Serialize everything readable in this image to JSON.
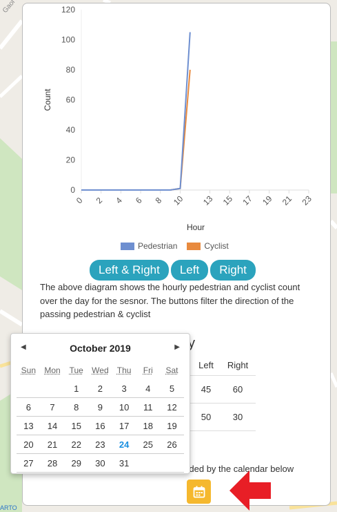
{
  "map": {
    "street_label": "Gaol Ros",
    "attribution": "ARTO",
    "colors": {
      "land": "#efece6",
      "park": "#cfe6c0",
      "road": "#ffffff",
      "major_road": "#f9e29a"
    }
  },
  "chart_data": {
    "type": "line",
    "xlabel": "Hour",
    "ylabel": "Count",
    "x_ticks": [
      0,
      2,
      4,
      6,
      8,
      10,
      13,
      15,
      17,
      19,
      21,
      23
    ],
    "ylim": [
      0,
      120
    ],
    "y_ticks": [
      0,
      20,
      40,
      60,
      80,
      100,
      120
    ],
    "series": [
      {
        "name": "Pedestrian",
        "color": "#6e8fd0",
        "points": [
          [
            0,
            0
          ],
          [
            1,
            0
          ],
          [
            2,
            0
          ],
          [
            3,
            0
          ],
          [
            4,
            0
          ],
          [
            5,
            0
          ],
          [
            6,
            0
          ],
          [
            7,
            0
          ],
          [
            8,
            0
          ],
          [
            9,
            0
          ],
          [
            10,
            1
          ],
          [
            11,
            105
          ]
        ]
      },
      {
        "name": "Cyclist",
        "color": "#e88a3e",
        "points": [
          [
            0,
            0
          ],
          [
            1,
            0
          ],
          [
            2,
            0
          ],
          [
            3,
            0
          ],
          [
            4,
            0
          ],
          [
            5,
            0
          ],
          [
            6,
            0
          ],
          [
            7,
            0
          ],
          [
            8,
            0
          ],
          [
            9,
            0
          ],
          [
            10,
            1
          ],
          [
            11,
            80
          ]
        ]
      }
    ]
  },
  "legend": {
    "pedestrian": "Pedestrian",
    "cyclist": "Cyclist"
  },
  "buttons": {
    "both": "Left & Right",
    "left": "Left",
    "right": "Right"
  },
  "description": "The above diagram shows the hourly pedestrian and cyclist count over the day for the sesnor. The buttons filter the direction of the passing pedestrian & cyclist",
  "section_title_fragment": "y",
  "table": {
    "headers": [
      "Left",
      "Right"
    ],
    "rows": [
      [
        "45",
        "60"
      ],
      [
        "50",
        "30"
      ]
    ]
  },
  "note_fragment": "vided by the calendar below",
  "calendar": {
    "month": "October",
    "year": "2019",
    "prev_icon": "◀",
    "next_icon": "▶",
    "weekdays": [
      "Sun",
      "Mon",
      "Tue",
      "Wed",
      "Thu",
      "Fri",
      "Sat"
    ],
    "weeks": [
      [
        "",
        "",
        "1",
        "2",
        "3",
        "4",
        "5"
      ],
      [
        "6",
        "7",
        "8",
        "9",
        "10",
        "11",
        "12"
      ],
      [
        "13",
        "14",
        "15",
        "16",
        "17",
        "18",
        "19"
      ],
      [
        "20",
        "21",
        "22",
        "23",
        "24",
        "25",
        "26"
      ],
      [
        "27",
        "28",
        "29",
        "30",
        "31",
        "",
        ""
      ]
    ],
    "selected_day": "24"
  }
}
